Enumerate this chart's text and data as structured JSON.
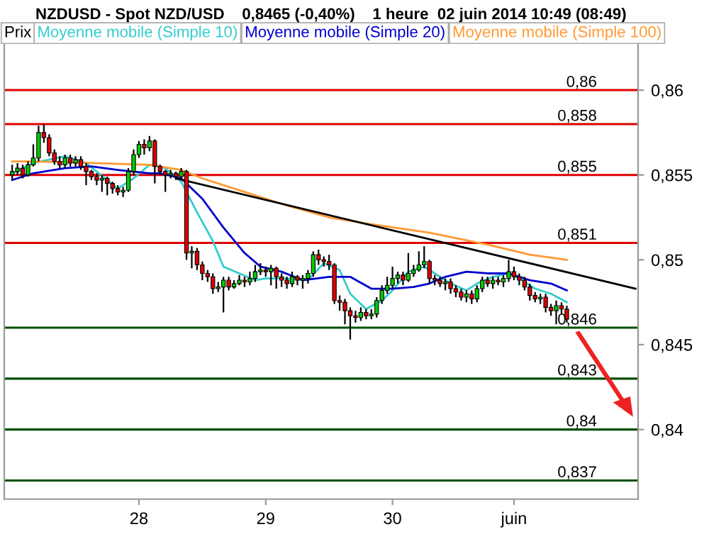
{
  "chart_data": {
    "type": "candlestick",
    "title": "NZDUSD - Spot NZD/USD    0,8465 (-0,40%)    1 heure  02 juin 2014 10:49 (08:49)",
    "legend": "top left",
    "categories": [
      null,
      null,
      null,
      null,
      null,
      null,
      null,
      null,
      null,
      null,
      null,
      null,
      null,
      null,
      null,
      null,
      null,
      null,
      null,
      null,
      null,
      null,
      null,
      null,
      null,
      "28",
      null,
      null,
      null,
      null,
      null,
      null,
      null,
      null,
      null,
      null,
      null,
      null,
      null,
      null,
      null,
      null,
      null,
      null,
      null,
      null,
      null,
      null,
      null,
      "29",
      null,
      null,
      null,
      null,
      null,
      null,
      null,
      null,
      null,
      null,
      null,
      null,
      null,
      null,
      null,
      null,
      null,
      null,
      null,
      null,
      null,
      null,
      null,
      "30",
      null,
      null,
      null,
      null,
      null,
      null,
      null,
      null,
      null,
      null,
      null,
      null,
      null,
      null,
      null,
      null,
      null,
      null,
      null,
      null,
      null,
      null,
      "juin",
      null,
      null,
      null,
      null,
      null,
      null,
      null,
      null,
      null,
      null,
      null,
      null,
      null,
      null,
      null,
      null,
      null,
      null,
      null,
      null,
      null,
      null,
      null
    ],
    "series": [
      {
        "name": "Prix",
        "color": "#000000",
        "ohlc": [
          null,
          [
            0.855,
            0.8556,
            0.8547,
            0.8552
          ],
          [
            0.8552,
            0.8557,
            0.855,
            0.8554
          ],
          [
            0.8554,
            0.8556,
            0.8548,
            0.855
          ],
          [
            0.855,
            0.8558,
            0.8549,
            0.8556
          ],
          [
            0.8556,
            0.8568,
            0.8555,
            0.856
          ],
          [
            0.856,
            0.8579,
            0.8558,
            0.8575
          ],
          [
            0.8575,
            0.858,
            0.8569,
            0.8572
          ],
          [
            0.8572,
            0.8574,
            0.8561,
            0.8563
          ],
          [
            0.8563,
            0.8565,
            0.8556,
            0.8558
          ],
          [
            0.8558,
            0.8561,
            0.8554,
            0.8556
          ],
          [
            0.8556,
            0.8562,
            0.8554,
            0.856
          ],
          [
            0.856,
            0.8562,
            0.8555,
            0.8557
          ],
          [
            0.8557,
            0.8561,
            0.8555,
            0.8559
          ],
          [
            0.8559,
            0.8561,
            0.8553,
            0.8555
          ],
          [
            0.8555,
            0.8557,
            0.8544,
            0.8552
          ],
          [
            0.8552,
            0.8553,
            0.8547,
            0.8549
          ],
          [
            0.8549,
            0.8551,
            0.8544,
            0.8547
          ],
          [
            0.8547,
            0.855,
            0.854,
            0.8548
          ],
          [
            0.8548,
            0.8549,
            0.8538,
            0.8545
          ],
          [
            0.8545,
            0.8546,
            0.8539,
            0.8542
          ],
          [
            0.8542,
            0.8544,
            0.8538,
            0.854
          ],
          [
            0.854,
            0.8543,
            0.8537,
            0.8541
          ],
          [
            0.8541,
            0.8554,
            0.854,
            0.8552
          ],
          [
            0.8552,
            0.8565,
            0.855,
            0.8562
          ],
          [
            0.8562,
            0.857,
            0.856,
            0.8568
          ],
          [
            0.8568,
            0.8571,
            0.8562,
            0.8566
          ],
          [
            0.8566,
            0.8573,
            0.8564,
            0.857
          ],
          [
            0.857,
            0.8571,
            0.8545,
            0.8555
          ],
          [
            0.8555,
            0.8556,
            0.855,
            0.8552
          ],
          [
            0.8552,
            0.8553,
            0.854,
            0.855
          ],
          [
            0.855,
            0.8553,
            0.8548,
            0.8551
          ],
          [
            0.8551,
            0.8552,
            0.8547,
            0.8549
          ],
          [
            0.8549,
            0.8554,
            0.8547,
            0.8552
          ],
          [
            0.8552,
            0.8553,
            0.85,
            0.8504
          ],
          [
            0.8504,
            0.8508,
            0.8495,
            0.8505
          ],
          [
            0.8505,
            0.8507,
            0.8494,
            0.8497
          ],
          [
            0.8497,
            0.8499,
            0.8488,
            0.8492
          ],
          [
            0.8492,
            0.8494,
            0.8487,
            0.849
          ],
          [
            0.849,
            0.8492,
            0.848,
            0.8483
          ],
          [
            0.8483,
            0.8487,
            0.8481,
            0.8484
          ],
          [
            0.8484,
            0.849,
            0.8469,
            0.8488
          ],
          [
            0.8488,
            0.849,
            0.8482,
            0.8484
          ],
          [
            0.8484,
            0.8488,
            0.8483,
            0.8486
          ],
          [
            0.8486,
            0.8491,
            0.8485,
            0.8488
          ],
          [
            0.8488,
            0.849,
            0.8484,
            0.8487
          ],
          [
            0.8487,
            0.8493,
            0.8485,
            0.8489
          ],
          [
            0.8489,
            0.8497,
            0.8487,
            0.8493
          ],
          [
            0.8493,
            0.8498,
            0.8491,
            0.8494
          ],
          [
            0.8494,
            0.8496,
            0.849,
            0.8493
          ],
          [
            0.8493,
            0.8497,
            0.8485,
            0.8495
          ],
          [
            0.8495,
            0.8496,
            0.8483,
            0.849
          ],
          [
            0.849,
            0.8492,
            0.8484,
            0.8488
          ],
          [
            0.8488,
            0.849,
            0.8483,
            0.8486
          ],
          [
            0.8486,
            0.8493,
            0.8484,
            0.849
          ],
          [
            0.849,
            0.8491,
            0.8485,
            0.8488
          ],
          [
            0.8488,
            0.8491,
            0.8483,
            0.8489
          ],
          [
            0.8489,
            0.8494,
            0.8486,
            0.8492
          ],
          [
            0.8492,
            0.8505,
            0.849,
            0.8503
          ],
          [
            0.8503,
            0.8506,
            0.8497,
            0.85
          ],
          [
            0.85,
            0.8502,
            0.8496,
            0.8499
          ],
          [
            0.8499,
            0.8503,
            0.8494,
            0.8497
          ],
          [
            0.8497,
            0.8498,
            0.8474,
            0.8476
          ],
          [
            0.8476,
            0.8479,
            0.847,
            0.8475
          ],
          [
            0.8475,
            0.8477,
            0.8462,
            0.847
          ],
          [
            0.847,
            0.8472,
            0.8453,
            0.8467
          ],
          [
            0.8467,
            0.847,
            0.8463,
            0.8466
          ],
          [
            0.8466,
            0.8472,
            0.8464,
            0.8469
          ],
          [
            0.8469,
            0.8471,
            0.8465,
            0.8467
          ],
          [
            0.8467,
            0.8471,
            0.8465,
            0.8468
          ],
          [
            0.8468,
            0.8478,
            0.8466,
            0.8476
          ],
          [
            0.8476,
            0.8485,
            0.8474,
            0.8482
          ],
          [
            0.8482,
            0.849,
            0.848,
            0.8485
          ],
          [
            0.8485,
            0.8496,
            0.8483,
            0.8489
          ],
          [
            0.8489,
            0.8493,
            0.8486,
            0.8491
          ],
          [
            0.8491,
            0.8493,
            0.8485,
            0.8488
          ],
          [
            0.8488,
            0.8504,
            0.8487,
            0.8492
          ],
          [
            0.8492,
            0.8497,
            0.849,
            0.8494
          ],
          [
            0.8494,
            0.8505,
            0.8493,
            0.8497
          ],
          [
            0.8497,
            0.8508,
            0.8495,
            0.8499
          ],
          [
            0.8499,
            0.85,
            0.8486,
            0.8489
          ],
          [
            0.8489,
            0.8491,
            0.8485,
            0.8488
          ],
          [
            0.8488,
            0.849,
            0.8484,
            0.8486
          ],
          [
            0.8486,
            0.8489,
            0.8482,
            0.8487
          ],
          [
            0.8487,
            0.8489,
            0.848,
            0.8483
          ],
          [
            0.8483,
            0.8485,
            0.8478,
            0.8481
          ],
          [
            0.8481,
            0.8483,
            0.8476,
            0.8478
          ],
          [
            0.8478,
            0.8482,
            0.8475,
            0.848
          ],
          [
            0.848,
            0.8482,
            0.8474,
            0.8477
          ],
          [
            0.8477,
            0.8485,
            0.8475,
            0.8483
          ],
          [
            0.8483,
            0.849,
            0.8481,
            0.8488
          ],
          [
            0.8488,
            0.849,
            0.8484,
            0.8486
          ],
          [
            0.8486,
            0.849,
            0.8483,
            0.8488
          ],
          [
            0.8488,
            0.849,
            0.8485,
            0.8487
          ],
          [
            0.8487,
            0.8491,
            0.8484,
            0.8489
          ],
          [
            0.8489,
            0.85,
            0.8487,
            0.8493
          ],
          [
            0.8493,
            0.8496,
            0.8488,
            0.849
          ],
          [
            0.849,
            0.8492,
            0.8485,
            0.8488
          ],
          [
            0.8488,
            0.849,
            0.8482,
            0.8484
          ],
          [
            0.8484,
            0.8486,
            0.8476,
            0.8479
          ],
          [
            0.8479,
            0.8481,
            0.8475,
            0.8477
          ],
          [
            0.8477,
            0.848,
            0.8474,
            0.8478
          ],
          [
            0.8478,
            0.848,
            0.8469,
            0.8472
          ],
          [
            0.8472,
            0.8474,
            0.8467,
            0.847
          ],
          [
            0.847,
            0.8476,
            0.8462,
            0.8473
          ],
          [
            0.8473,
            0.8475,
            0.8468,
            0.8471
          ],
          [
            0.8471,
            0.8473,
            0.8463,
            0.8465
          ],
          null,
          null,
          null,
          null,
          null,
          null,
          null,
          null,
          null,
          null,
          null,
          null,
          null
        ]
      },
      {
        "name": "Moyenne mobile (Simple 10)",
        "type": "line",
        "color": "#33cccc",
        "values": [
          null,
          0.8551,
          null,
          null,
          null,
          0.8557,
          null,
          null,
          null,
          null,
          null,
          0.8561,
          null,
          null,
          null,
          0.8557,
          null,
          null,
          null,
          0.8547,
          null,
          0.8542,
          null,
          null,
          0.8548,
          null,
          null,
          0.8556,
          null,
          null,
          0.8554,
          null,
          null,
          0.8546,
          null,
          null,
          0.8528,
          null,
          null,
          0.8511,
          null,
          0.8496,
          null,
          null,
          0.8492,
          null,
          null,
          0.8488,
          null,
          0.8489,
          null,
          null,
          null,
          0.8489,
          null,
          null,
          null,
          0.8488,
          null,
          null,
          0.8498,
          null,
          null,
          0.8494,
          null,
          0.848,
          null,
          null,
          0.8471,
          null,
          null,
          0.8476,
          null,
          0.8482,
          null,
          null,
          0.8493,
          null,
          null,
          0.8496,
          null,
          0.8492,
          null,
          null,
          0.8486,
          null,
          null,
          0.8482,
          null,
          0.8486,
          null,
          null,
          0.849,
          null,
          null,
          0.8492,
          null,
          0.8489,
          null,
          null,
          0.8483,
          null,
          null,
          0.848,
          null,
          null,
          0.8475,
          null,
          null,
          null,
          null,
          null,
          null,
          null,
          null,
          null,
          null,
          null,
          null,
          null
        ]
      },
      {
        "name": "Moyenne mobile (Simple 20)",
        "type": "line",
        "color": "#0000cc",
        "values": [
          null,
          0.8547,
          null,
          null,
          null,
          0.8551,
          null,
          null,
          null,
          null,
          null,
          0.8554,
          null,
          null,
          null,
          null,
          0.8555,
          null,
          null,
          null,
          null,
          0.8553,
          null,
          null,
          null,
          null,
          null,
          0.8551,
          null,
          0.8551,
          null,
          null,
          null,
          0.8548,
          null,
          null,
          null,
          0.8536,
          null,
          null,
          null,
          0.8519,
          null,
          null,
          null,
          0.8504,
          null,
          null,
          0.8496,
          null,
          null,
          null,
          0.8493,
          null,
          null,
          null,
          0.8488,
          null,
          null,
          null,
          null,
          0.849,
          null,
          null,
          null,
          0.849,
          null,
          null,
          null,
          0.8483,
          null,
          null,
          null,
          0.8483,
          null,
          null,
          null,
          0.8484,
          null,
          null,
          0.8486,
          null,
          null,
          0.849,
          null,
          null,
          null,
          0.8493,
          null,
          null,
          null,
          0.8492,
          null,
          null,
          null,
          0.8492,
          null,
          null,
          null,
          0.8488,
          null,
          null,
          null,
          0.8486,
          null,
          null,
          0.8482,
          null,
          null,
          null,
          null,
          null,
          null,
          null,
          null,
          null,
          null,
          null,
          null,
          null
        ]
      },
      {
        "name": "Moyenne mobile (Simple 100)",
        "type": "line",
        "color": "#ff9933",
        "values": [
          null,
          0.8558,
          null,
          null,
          null,
          0.8558,
          null,
          null,
          null,
          null,
          null,
          null,
          null,
          null,
          null,
          null,
          0.8557,
          null,
          null,
          null,
          null,
          null,
          null,
          null,
          null,
          null,
          null,
          0.8556,
          null,
          null,
          null,
          null,
          null,
          0.8553,
          null,
          null,
          null,
          0.8548,
          null,
          null,
          null,
          null,
          null,
          null,
          null,
          0.854,
          null,
          null,
          null,
          null,
          null,
          null,
          null,
          0.8532,
          null,
          null,
          null,
          null,
          null,
          null,
          null,
          0.8525,
          null,
          null,
          null,
          null,
          null,
          null,
          null,
          0.8521,
          null,
          null,
          null,
          null,
          null,
          null,
          null,
          null,
          null,
          null,
          0.8516,
          null,
          null,
          null,
          null,
          null,
          null,
          null,
          null,
          null,
          null,
          0.8509,
          null,
          null,
          null,
          null,
          null,
          null,
          null,
          0.8503,
          null,
          null,
          null,
          null,
          null,
          null,
          0.85,
          null,
          null,
          null,
          null,
          null,
          null,
          null,
          null,
          null,
          null,
          null,
          null,
          null
        ]
      },
      {
        "type": "line",
        "color": "#000000",
        "values": [
          null,
          null,
          null,
          null,
          null,
          null,
          null,
          null,
          null,
          null,
          null,
          null,
          null,
          null,
          null,
          null,
          null,
          null,
          null,
          null,
          null,
          null,
          null,
          null,
          null,
          null,
          null,
          null,
          null,
          null,
          null,
          null,
          0.8548,
          null,
          null,
          null,
          null,
          null,
          null,
          null,
          null,
          null,
          null,
          null,
          null,
          null,
          null,
          null,
          null,
          null,
          null,
          null,
          null,
          null,
          null,
          null,
          null,
          null,
          null,
          null,
          null,
          null,
          null,
          null,
          null,
          null,
          null,
          null,
          null,
          null,
          null,
          null,
          null,
          null,
          null,
          null,
          null,
          null,
          null,
          null,
          null,
          null,
          null,
          null,
          null,
          null,
          null,
          null,
          null,
          null,
          null,
          null,
          null,
          null,
          null,
          null,
          null,
          null,
          null,
          null,
          null,
          null,
          null,
          null,
          null,
          null,
          null,
          null,
          null,
          null,
          null,
          null,
          null,
          null,
          null,
          null,
          null,
          null,
          null,
          0.8483
        ]
      }
    ],
    "ref_lines": [
      {
        "axis": "y",
        "value": 0.86,
        "label": "0,86",
        "color": "#e00000"
      },
      {
        "axis": "y",
        "value": 0.858,
        "label": "0,858",
        "color": "#e00000"
      },
      {
        "axis": "y",
        "value": 0.855,
        "label": "0,855",
        "color": "#e00000"
      },
      {
        "axis": "y",
        "value": 0.851,
        "label": "0,851",
        "color": "#e00000"
      },
      {
        "axis": "y",
        "value": 0.846,
        "label": "0,846",
        "color": "#005000"
      },
      {
        "axis": "y",
        "value": 0.843,
        "label": "0,843",
        "color": "#005000"
      },
      {
        "axis": "y",
        "value": 0.84,
        "label": "0,84",
        "color": "#005000"
      },
      {
        "axis": "y",
        "value": 0.837,
        "label": "0,837",
        "color": "#005000"
      }
    ],
    "ylim": [
      0.8359,
      0.8628
    ],
    "yticks": [
      {
        "value": 0.84,
        "label": "0,84"
      },
      {
        "value": 0.845,
        "label": "0,845"
      },
      {
        "value": 0.85,
        "label": "0,85"
      },
      {
        "value": 0.855,
        "label": "0,855"
      },
      {
        "value": 0.86,
        "label": "0,86"
      }
    ],
    "grid": false
  }
}
